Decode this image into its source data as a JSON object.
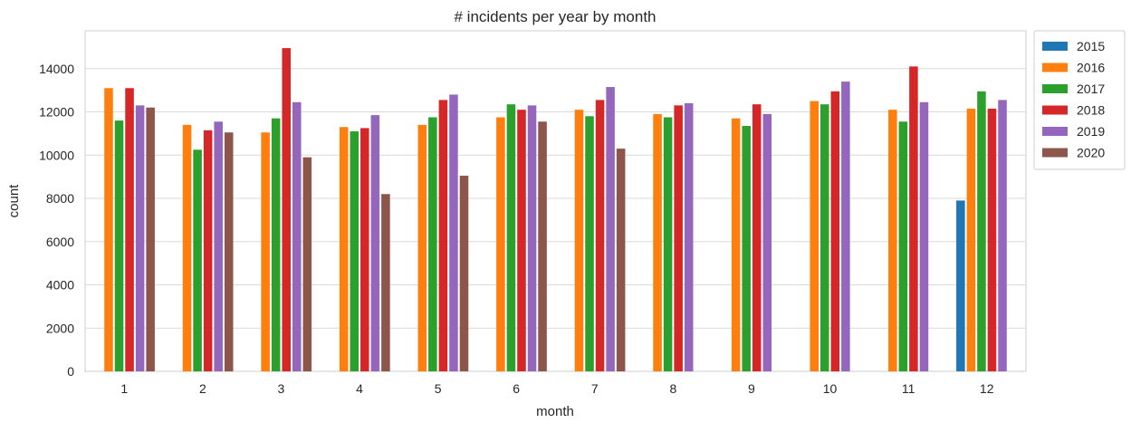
{
  "chart_data": {
    "type": "bar",
    "title": "# incidents per year by month",
    "xlabel": "month",
    "ylabel": "count",
    "categories": [
      "1",
      "2",
      "3",
      "4",
      "5",
      "6",
      "7",
      "8",
      "9",
      "10",
      "11",
      "12"
    ],
    "ylim": [
      0,
      15750
    ],
    "yticks": [
      "0",
      "2000",
      "4000",
      "6000",
      "8000",
      "10000",
      "12000",
      "14000"
    ],
    "grid": "horizontal",
    "legend_position": "outside-right",
    "series": [
      {
        "name": "2015",
        "color": "#1f77b4",
        "values": [
          null,
          null,
          null,
          null,
          null,
          null,
          null,
          null,
          null,
          null,
          null,
          7900
        ]
      },
      {
        "name": "2016",
        "color": "#ff7f0e",
        "values": [
          13100,
          11400,
          11050,
          11300,
          11400,
          11750,
          12100,
          11900,
          11700,
          12500,
          12100,
          12150
        ]
      },
      {
        "name": "2017",
        "color": "#2ca02c",
        "values": [
          11600,
          10250,
          11700,
          11100,
          11750,
          12350,
          11800,
          11750,
          11350,
          12350,
          11550,
          12950
        ]
      },
      {
        "name": "2018",
        "color": "#d62728",
        "values": [
          13100,
          11150,
          14950,
          11250,
          12550,
          12100,
          12550,
          12300,
          12350,
          12950,
          14100,
          12150
        ]
      },
      {
        "name": "2019",
        "color": "#9467bd",
        "values": [
          12300,
          11550,
          12450,
          11850,
          12800,
          12300,
          13150,
          12400,
          11900,
          13400,
          12450,
          12550
        ]
      },
      {
        "name": "2020",
        "color": "#8c564b",
        "values": [
          12200,
          11050,
          9900,
          8200,
          9050,
          11550,
          10300,
          null,
          null,
          null,
          null,
          null
        ]
      }
    ]
  }
}
